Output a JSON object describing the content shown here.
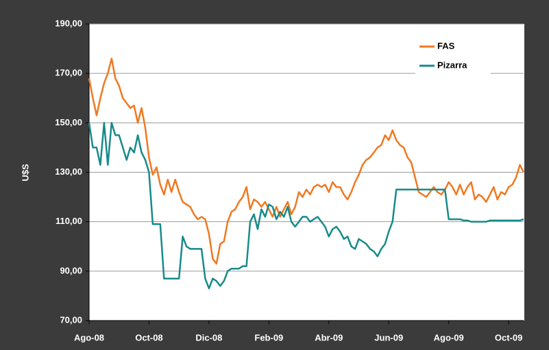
{
  "chart_data": {
    "type": "line",
    "ylabel": "U$S",
    "categories": [
      "Ago-08",
      null,
      null,
      null,
      null,
      null,
      null,
      null,
      null,
      null,
      null,
      null,
      null,
      null,
      null,
      null,
      "Oct-08",
      null,
      null,
      null,
      null,
      null,
      null,
      null,
      null,
      null,
      null,
      null,
      null,
      null,
      null,
      null,
      "Dic-08",
      null,
      null,
      null,
      null,
      null,
      null,
      null,
      null,
      null,
      null,
      null,
      null,
      null,
      null,
      null,
      "Feb-09",
      null,
      null,
      null,
      null,
      null,
      null,
      null,
      null,
      null,
      null,
      null,
      null,
      null,
      null,
      null,
      "Abr-09",
      null,
      null,
      null,
      null,
      null,
      null,
      null,
      null,
      null,
      null,
      null,
      null,
      null,
      null,
      null,
      "Jun-09",
      null,
      null,
      null,
      null,
      null,
      null,
      null,
      null,
      null,
      null,
      null,
      null,
      null,
      null,
      null,
      "Ago-09",
      null,
      null,
      null,
      null,
      null,
      null,
      null,
      null,
      null,
      null,
      null,
      null,
      null,
      null,
      null,
      "Oct-09",
      null,
      null,
      null,
      null
    ],
    "series": [
      {
        "name": "FAS",
        "color": "#f07820",
        "values": [
          168,
          160,
          153,
          160,
          166,
          170,
          176,
          168,
          165,
          160,
          158,
          156,
          157,
          150,
          156,
          148,
          136,
          129,
          132,
          125,
          121,
          127,
          122,
          127,
          122,
          118,
          117,
          116,
          113,
          111,
          112,
          111,
          105,
          95,
          93,
          101,
          102,
          110,
          114,
          115,
          118,
          120,
          124,
          115,
          119,
          118,
          116,
          118,
          115,
          112,
          116,
          112,
          115,
          118,
          113,
          116,
          122,
          120,
          123,
          121,
          124,
          125,
          124,
          125,
          122,
          126,
          124,
          124,
          121,
          119,
          122,
          126,
          129,
          133,
          135,
          136,
          138,
          140,
          141,
          145,
          143,
          147,
          143,
          141,
          140,
          136,
          134,
          128,
          122,
          121,
          120,
          122,
          124,
          122,
          121,
          123,
          126,
          124,
          121,
          125,
          121,
          124,
          126,
          119,
          121,
          120,
          118,
          121,
          124,
          119,
          122,
          121,
          124,
          125,
          128,
          133,
          130
        ]
      },
      {
        "name": "Pizarra",
        "color": "#178a8a",
        "values": [
          150,
          140,
          140,
          133,
          150,
          133,
          150,
          145,
          145,
          140,
          135,
          140,
          138,
          145,
          138,
          135,
          130,
          109,
          109,
          109,
          87,
          87,
          87,
          87,
          87,
          104,
          100,
          99,
          99,
          99,
          99,
          87,
          83,
          87,
          86,
          84,
          86,
          90,
          91,
          91,
          91,
          92,
          92,
          110,
          113,
          107,
          115,
          112,
          117,
          116,
          111,
          114,
          112,
          116,
          110,
          108,
          110,
          112,
          112,
          110,
          111,
          112,
          110,
          108,
          104,
          107,
          108,
          106,
          103,
          104,
          100,
          99,
          103,
          102,
          101,
          99,
          98,
          96,
          99,
          101,
          106,
          110,
          123,
          123,
          123,
          123,
          123,
          123,
          123,
          123,
          123,
          123,
          123,
          123,
          123,
          123,
          111,
          111,
          111,
          111,
          110.5,
          110.5,
          110,
          110,
          110,
          110,
          110,
          110.5,
          110.5,
          110.5,
          110.5,
          110.5,
          110.5,
          110.5,
          110.5,
          110.5,
          111
        ]
      }
    ],
    "ylim": [
      70,
      190
    ],
    "yticks": [
      {
        "value": 70,
        "label": "70,00"
      },
      {
        "value": 90,
        "label": "90,00"
      },
      {
        "value": 110,
        "label": "110,00"
      },
      {
        "value": 130,
        "label": "130,00"
      },
      {
        "value": 150,
        "label": "150,00"
      },
      {
        "value": 170,
        "label": "170,00"
      },
      {
        "value": 190,
        "label": "190,00"
      }
    ],
    "grid": true,
    "legend": "top-right"
  }
}
